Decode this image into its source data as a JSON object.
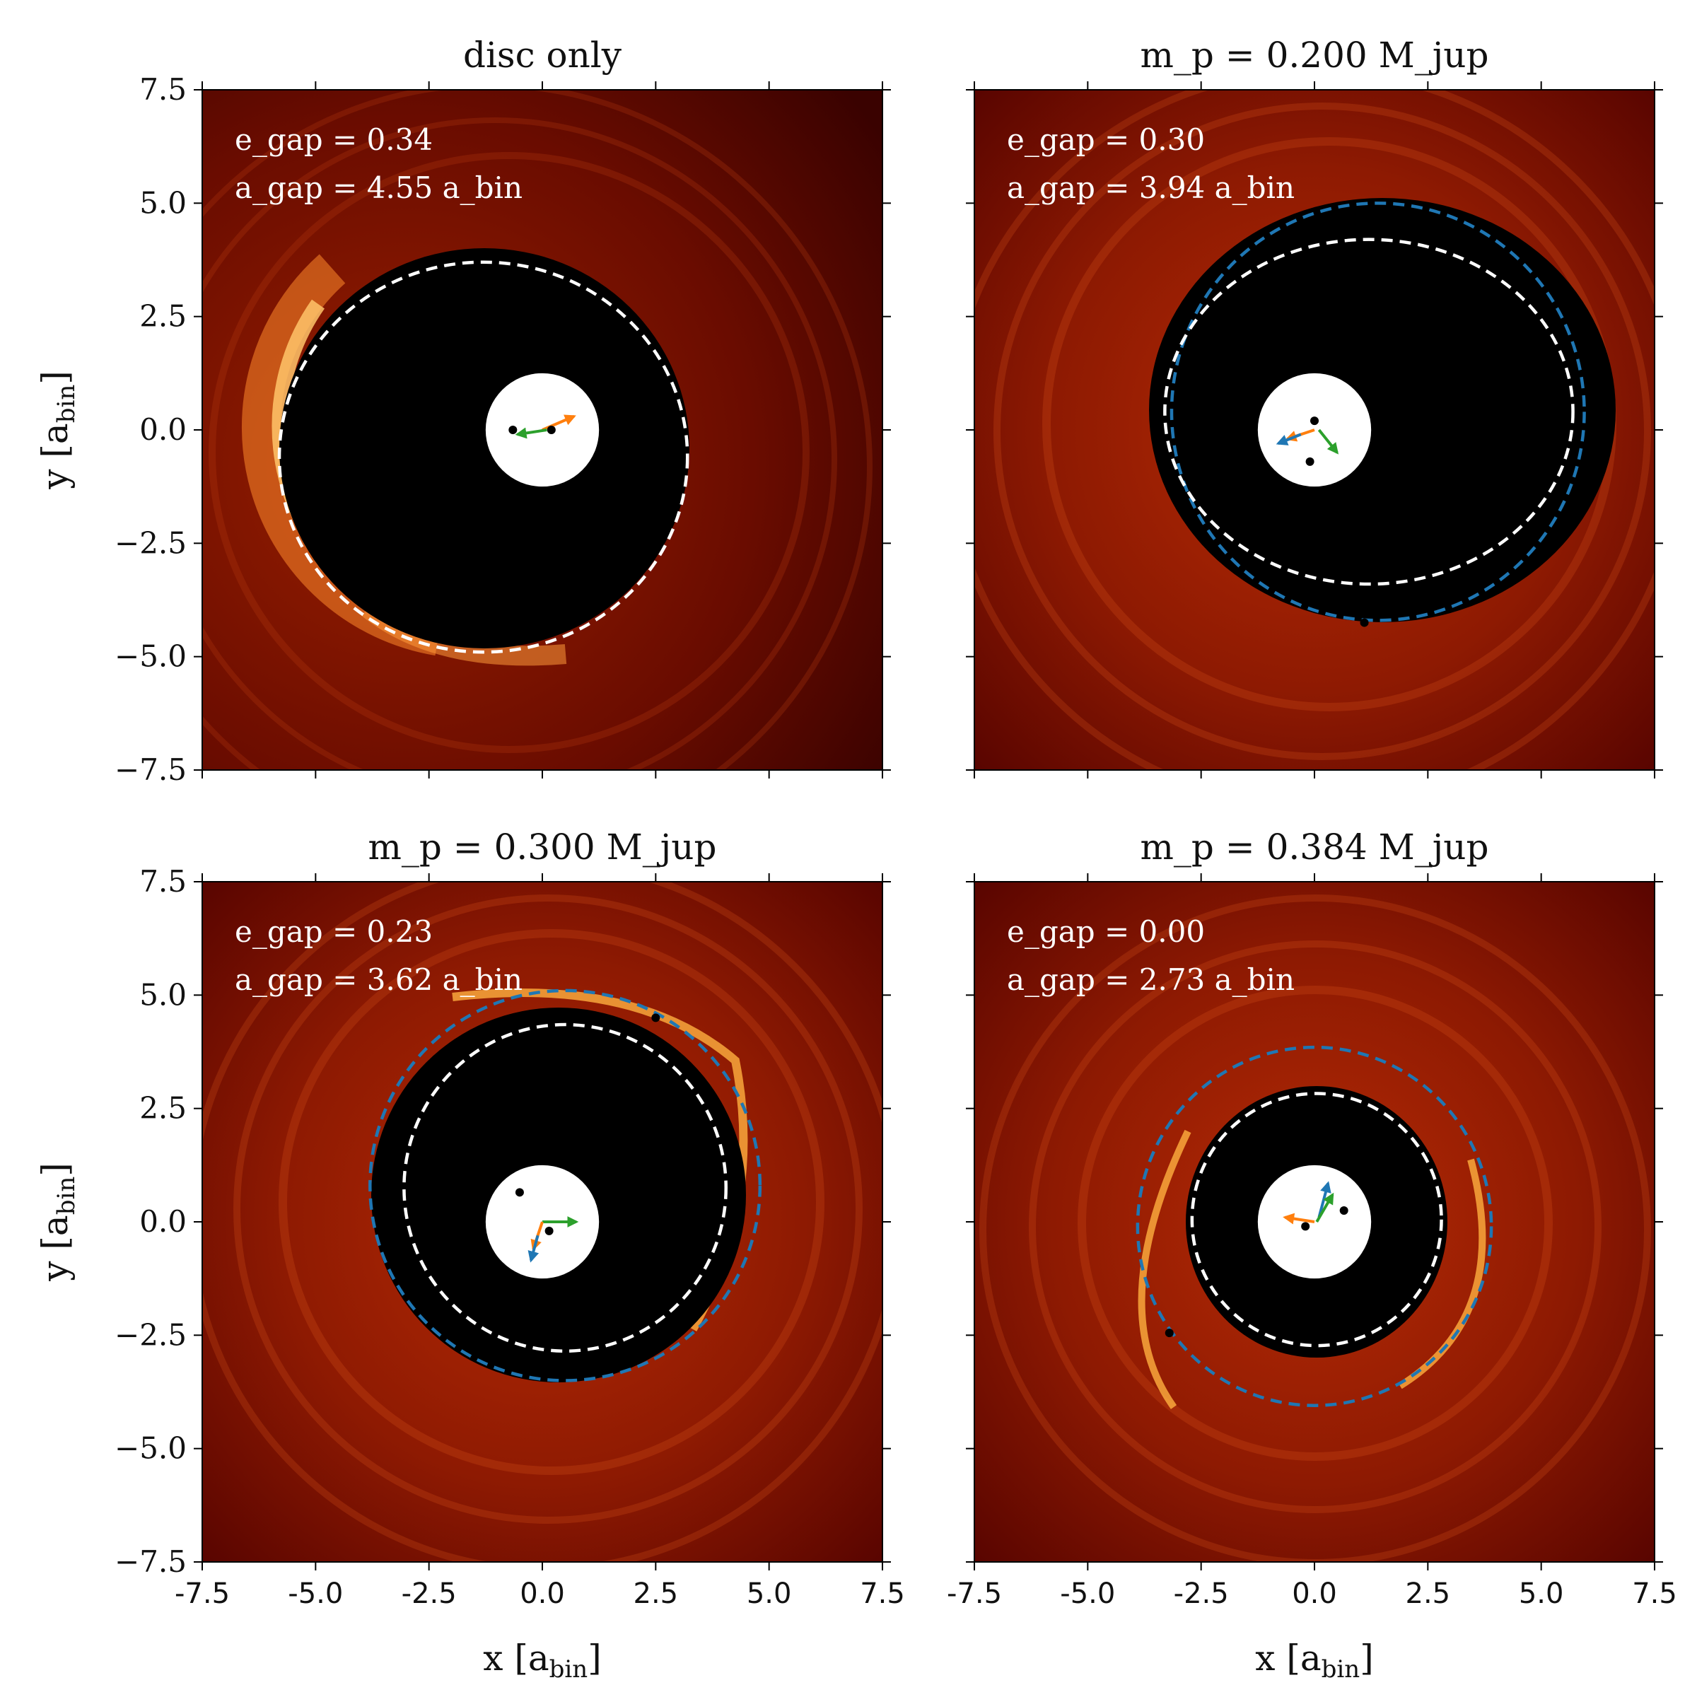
{
  "figure": {
    "xlabel": "x [a_bin]",
    "ylabel": "y [a_bin]",
    "x_tick_labels": [
      "-7.5",
      "-5.0",
      "-2.5",
      "0.0",
      "2.5",
      "5.0",
      "7.5"
    ],
    "y_tick_labels": [
      "7.5",
      "5.0",
      "2.5",
      "0.0",
      "−2.5",
      "−5.0",
      "−7.5"
    ]
  },
  "chart_data": [
    {
      "type": "heatmap",
      "title": "disc only",
      "xlabel": "x [a_bin]",
      "ylabel": "y [a_bin]",
      "xlim": [
        -7.5,
        7.5
      ],
      "ylim": [
        -7.5,
        7.5
      ],
      "annotation_lines": [
        "e_gap = 0.34",
        "a_gap = 4.55 a_bin"
      ],
      "e_gap": 0.34,
      "a_gap": 4.55,
      "gap_ellipse": {
        "cx": -1.3,
        "cy": -0.6,
        "rx": 4.5,
        "ry": 4.3
      },
      "planet_orbit": null,
      "planet": null,
      "binary_stars": [
        {
          "x": -0.65,
          "y": 0.0
        },
        {
          "x": 0.2,
          "y": 0.0
        }
      ],
      "arrows": [
        {
          "color": "orange",
          "from": [
            0.0,
            0.0
          ],
          "to": [
            0.7,
            0.3
          ]
        },
        {
          "color": "green",
          "from": [
            0.1,
            0.0
          ],
          "to": [
            -0.55,
            -0.1
          ]
        }
      ]
    },
    {
      "type": "heatmap",
      "title": "m_p = 0.200 M_jup",
      "xlabel": "x [a_bin]",
      "ylabel": "y [a_bin]",
      "xlim": [
        -7.5,
        7.5
      ],
      "ylim": [
        -7.5,
        7.5
      ],
      "annotation_lines": [
        "e_gap = 0.30",
        "a_gap = 3.94 a_bin"
      ],
      "e_gap": 0.3,
      "a_gap": 3.94,
      "gap_ellipse": {
        "cx": 1.2,
        "cy": 0.4,
        "rx": 4.5,
        "ry": 3.8
      },
      "planet_orbit": {
        "cx": 1.4,
        "cy": 0.4,
        "rx": 4.55,
        "ry": 4.6
      },
      "planet": {
        "x": 1.1,
        "y": -4.25
      },
      "binary_stars": [
        {
          "x": 0.0,
          "y": 0.2
        },
        {
          "x": -0.1,
          "y": -0.7
        }
      ],
      "arrows": [
        {
          "color": "orange",
          "from": [
            0.0,
            0.0
          ],
          "to": [
            -0.6,
            -0.2
          ]
        },
        {
          "color": "blue",
          "from": [
            -0.3,
            -0.1
          ],
          "to": [
            -0.8,
            -0.3
          ]
        },
        {
          "color": "green",
          "from": [
            0.1,
            0.0
          ],
          "to": [
            0.5,
            -0.5
          ]
        }
      ]
    },
    {
      "type": "heatmap",
      "title": "m_p = 0.300 M_jup",
      "xlabel": "x [a_bin]",
      "ylabel": "y [a_bin]",
      "xlim": [
        -7.5,
        7.5
      ],
      "ylim": [
        -7.5,
        7.5
      ],
      "annotation_lines": [
        "e_gap = 0.23",
        "a_gap = 3.62 a_bin"
      ],
      "e_gap": 0.23,
      "a_gap": 3.62,
      "gap_ellipse": {
        "cx": 0.5,
        "cy": 0.75,
        "rx": 3.55,
        "ry": 3.6
      },
      "planet_orbit": {
        "cx": 0.5,
        "cy": 0.8,
        "rx": 4.3,
        "ry": 4.3
      },
      "planet": {
        "x": 2.5,
        "y": 4.5
      },
      "binary_stars": [
        {
          "x": -0.5,
          "y": 0.65
        },
        {
          "x": 0.15,
          "y": -0.2
        }
      ],
      "arrows": [
        {
          "color": "green",
          "from": [
            0.0,
            0.0
          ],
          "to": [
            0.75,
            0.0
          ]
        },
        {
          "color": "orange",
          "from": [
            0.0,
            0.0
          ],
          "to": [
            -0.2,
            -0.6
          ]
        },
        {
          "color": "blue",
          "from": [
            -0.1,
            -0.3
          ],
          "to": [
            -0.25,
            -0.85
          ]
        }
      ]
    },
    {
      "type": "heatmap",
      "title": "m_p = 0.384 M_jup",
      "xlabel": "x [a_bin]",
      "ylabel": "y [a_bin]",
      "xlim": [
        -7.5,
        7.5
      ],
      "ylim": [
        -7.5,
        7.5
      ],
      "annotation_lines": [
        "e_gap = 0.00",
        "a_gap = 2.73 a_bin"
      ],
      "e_gap": 0.0,
      "a_gap": 2.73,
      "gap_ellipse": {
        "cx": 0.05,
        "cy": 0.05,
        "rx": 2.75,
        "ry": 2.78
      },
      "planet_orbit": {
        "cx": 0.0,
        "cy": -0.1,
        "rx": 3.9,
        "ry": 3.95
      },
      "planet": {
        "x": -3.2,
        "y": -2.45
      },
      "binary_stars": [
        {
          "x": -0.2,
          "y": -0.1
        },
        {
          "x": 0.65,
          "y": 0.25
        }
      ],
      "arrows": [
        {
          "color": "orange",
          "from": [
            0.0,
            0.0
          ],
          "to": [
            -0.65,
            0.1
          ]
        },
        {
          "color": "blue",
          "from": [
            0.1,
            0.1
          ],
          "to": [
            0.3,
            0.85
          ]
        },
        {
          "color": "green",
          "from": [
            0.05,
            0.0
          ],
          "to": [
            0.4,
            0.6
          ]
        }
      ]
    }
  ],
  "colors": {
    "disc_bright": "#ffd07a",
    "disc_mid": "#d94a10",
    "disc_dark": "#6e0a00",
    "gap": "#000000",
    "gap_outline": "#ffffff",
    "planet_orbit": "#1f77b4",
    "arrow_orange": "#ff7f0e",
    "arrow_green": "#2ca02c",
    "arrow_blue": "#1f77b4"
  }
}
